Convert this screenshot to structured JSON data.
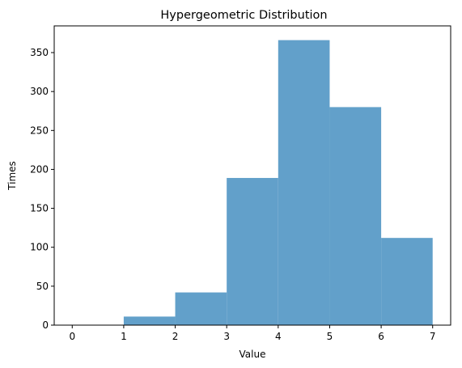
{
  "chart_data": {
    "type": "bar",
    "title": "Hypergeometric Distribution",
    "xlabel": "Value",
    "ylabel": "Times",
    "bins": [
      {
        "start": 0,
        "end": 1,
        "value": 0
      },
      {
        "start": 1,
        "end": 2,
        "value": 11
      },
      {
        "start": 2,
        "end": 3,
        "value": 42
      },
      {
        "start": 3,
        "end": 4,
        "value": 189
      },
      {
        "start": 4,
        "end": 5,
        "value": 366
      },
      {
        "start": 5,
        "end": 6,
        "value": 280
      },
      {
        "start": 6,
        "end": 7,
        "value": 112
      }
    ],
    "xticks": [
      "0",
      "1",
      "2",
      "3",
      "4",
      "5",
      "6",
      "7"
    ],
    "yticks": [
      "0",
      "50",
      "100",
      "150",
      "200",
      "250",
      "300",
      "350"
    ],
    "xlim": [
      -0.35,
      7.35
    ],
    "ylim": [
      0,
      384.3
    ],
    "grid": false,
    "legend": "none",
    "bar_color": "#62a0ca"
  }
}
